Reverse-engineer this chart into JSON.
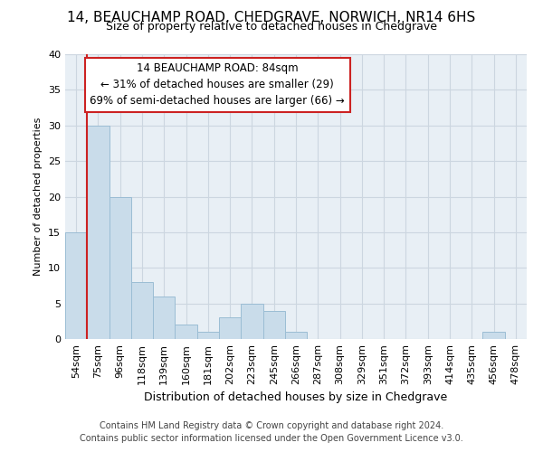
{
  "title1": "14, BEAUCHAMP ROAD, CHEDGRAVE, NORWICH, NR14 6HS",
  "title2": "Size of property relative to detached houses in Chedgrave",
  "xlabel": "Distribution of detached houses by size in Chedgrave",
  "ylabel": "Number of detached properties",
  "footer1": "Contains HM Land Registry data © Crown copyright and database right 2024.",
  "footer2": "Contains public sector information licensed under the Open Government Licence v3.0.",
  "bin_labels": [
    "54sqm",
    "75sqm",
    "96sqm",
    "118sqm",
    "139sqm",
    "160sqm",
    "181sqm",
    "202sqm",
    "223sqm",
    "245sqm",
    "266sqm",
    "287sqm",
    "308sqm",
    "329sqm",
    "351sqm",
    "372sqm",
    "393sqm",
    "414sqm",
    "435sqm",
    "456sqm",
    "478sqm"
  ],
  "bar_values": [
    15,
    30,
    20,
    8,
    6,
    2,
    1,
    3,
    5,
    4,
    1,
    0,
    0,
    0,
    0,
    0,
    0,
    0,
    0,
    1,
    0
  ],
  "bar_color": "#c9dcea",
  "bar_edge_color": "#9bbdd4",
  "annotation_line1": "14 BEAUCHAMP ROAD: 84sqm",
  "annotation_line2": "← 31% of detached houses are smaller (29)",
  "annotation_line3": "69% of semi-detached houses are larger (66) →",
  "annotation_box_color": "#ffffff",
  "annotation_box_edge_color": "#cc2222",
  "vline_color": "#cc2222",
  "vline_x_bar_index": 1,
  "vline_x_offset": -0.5,
  "ylim": [
    0,
    40
  ],
  "yticks": [
    0,
    5,
    10,
    15,
    20,
    25,
    30,
    35,
    40
  ],
  "grid_color": "#ccd6e0",
  "bg_color": "#e8eff5",
  "title1_fontsize": 11,
  "title2_fontsize": 9,
  "xlabel_fontsize": 9,
  "ylabel_fontsize": 8,
  "tick_fontsize": 8,
  "footer_fontsize": 7,
  "annot_fontsize": 8.5
}
